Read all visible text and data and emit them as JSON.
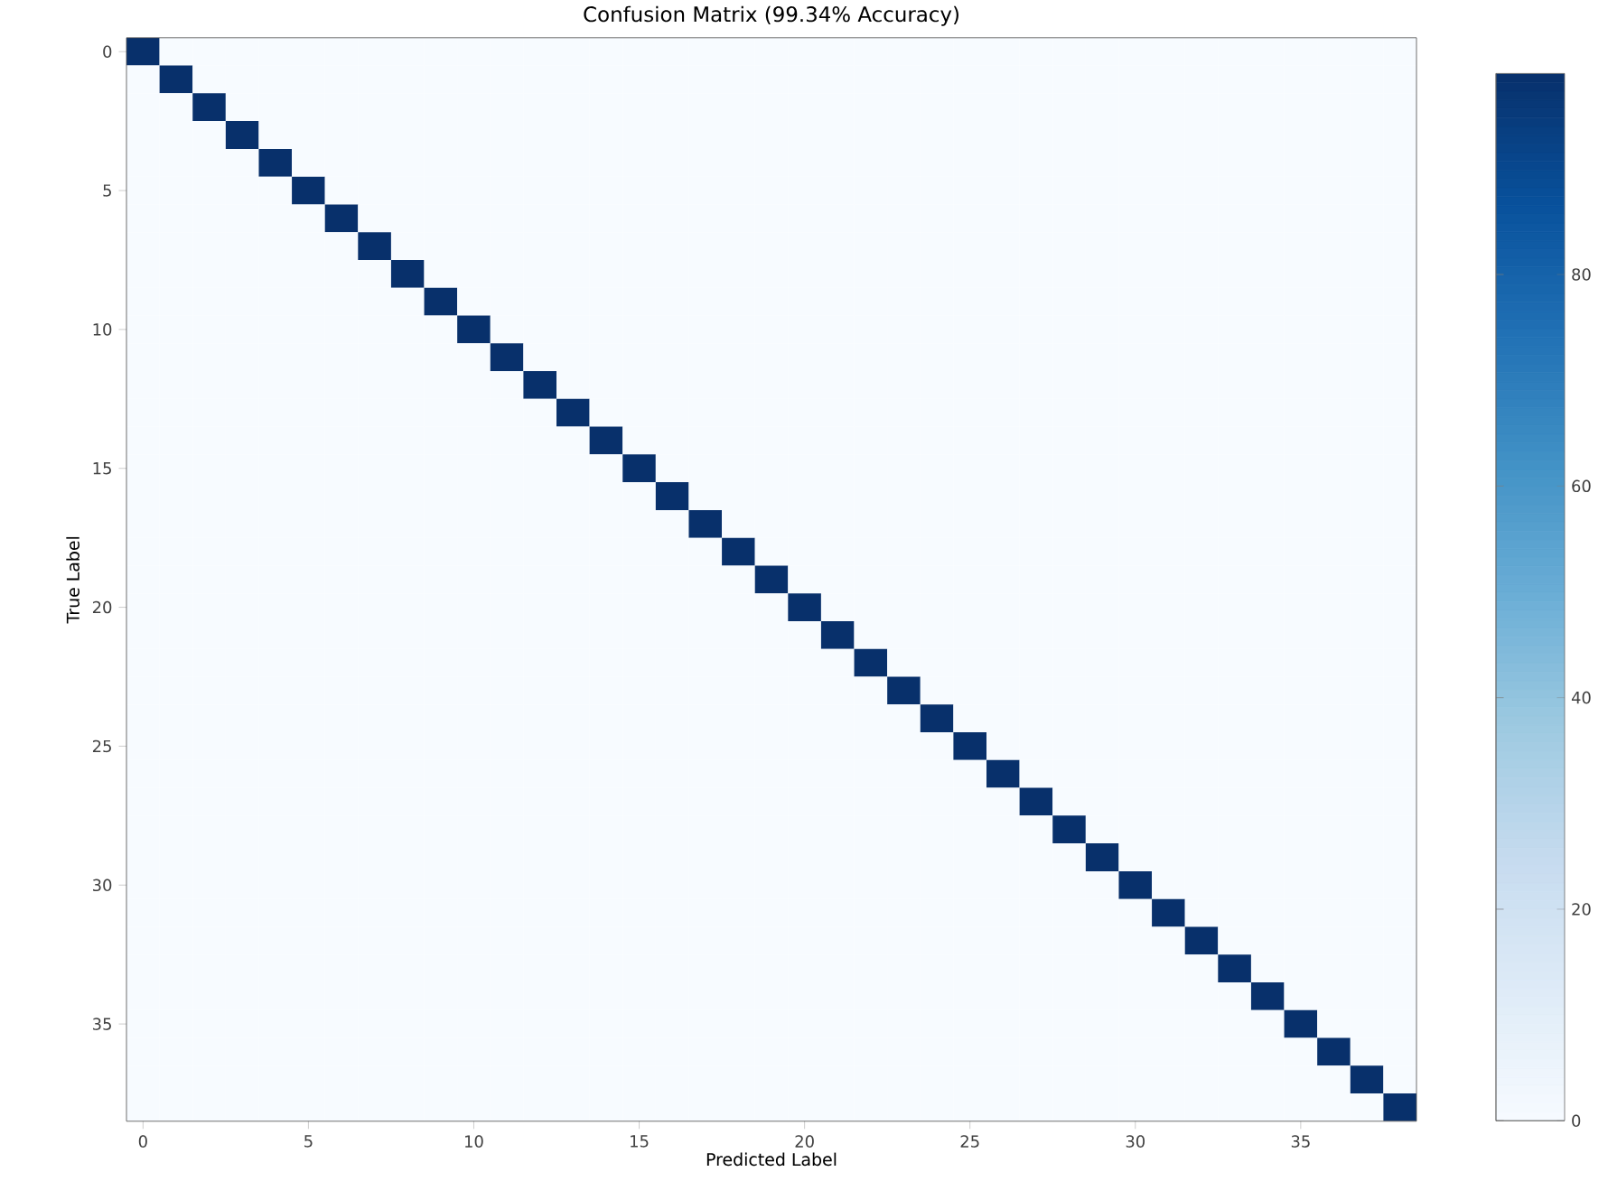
{
  "chart_data": {
    "type": "heatmap",
    "title": "Confusion Matrix (99.34% Accuracy)",
    "xlabel": "Predicted Label",
    "ylabel": "True Label",
    "categories": [
      "0",
      null,
      null,
      null,
      null,
      "5",
      null,
      null,
      null,
      null,
      "10",
      null,
      null,
      null,
      null,
      "15",
      null,
      null,
      null,
      null,
      "20",
      null,
      null,
      null,
      null,
      "25",
      null,
      null,
      null,
      null,
      "30",
      null,
      null,
      null,
      null,
      "35",
      null,
      null,
      null
    ],
    "y_categories": [
      "0",
      null,
      null,
      null,
      null,
      "5",
      null,
      null,
      null,
      null,
      "10",
      null,
      null,
      null,
      null,
      "15",
      null,
      null,
      null,
      null,
      "20",
      null,
      null,
      null,
      null,
      "25",
      null,
      null,
      null,
      null,
      "30",
      null,
      null,
      null,
      null,
      "35",
      null,
      null,
      null
    ],
    "clim": [
      0,
      99
    ],
    "cticks": [
      0,
      20,
      40,
      60,
      80
    ],
    "cells": [
      [
        99,
        0,
        0,
        0,
        0,
        0,
        0,
        0,
        0,
        0,
        0,
        0,
        0,
        0,
        0,
        0,
        0,
        0,
        0,
        0,
        0,
        0,
        0,
        0,
        0,
        0,
        0,
        0,
        0,
        0,
        0,
        0,
        0,
        0,
        0,
        0,
        0,
        0,
        0
      ],
      [
        0,
        99,
        0,
        0,
        0,
        0,
        0,
        0,
        0,
        0,
        0,
        0,
        0,
        0,
        0,
        0,
        0,
        0,
        0,
        0,
        0,
        0,
        0,
        0,
        0,
        0,
        0,
        0,
        0,
        0,
        0,
        0,
        0,
        0,
        0,
        0,
        0,
        0,
        0
      ],
      [
        0,
        0,
        99,
        0,
        0,
        0,
        0,
        0,
        0,
        0,
        0,
        0,
        0,
        0,
        0,
        0,
        0,
        0,
        0,
        0,
        0,
        0,
        0,
        0,
        0,
        0,
        0,
        0,
        0,
        0,
        0,
        0,
        0,
        0,
        0,
        0,
        0,
        0,
        0
      ],
      [
        0,
        0,
        0,
        99,
        0,
        0,
        0,
        0,
        0,
        0,
        0,
        0,
        0,
        0,
        0,
        0,
        0,
        0,
        0,
        0,
        0,
        0,
        0,
        0,
        0,
        0,
        0,
        0,
        0,
        0,
        0,
        0,
        0,
        0,
        0,
        0,
        0,
        0,
        0
      ],
      [
        0,
        0,
        0,
        0,
        99,
        0,
        0,
        0,
        0,
        0,
        0,
        0,
        0,
        0,
        0,
        0,
        0,
        0,
        0,
        0,
        0,
        0,
        0,
        0,
        0,
        0,
        0,
        0,
        0,
        0,
        0,
        0,
        0,
        0,
        0,
        0,
        0,
        0,
        0
      ],
      [
        0,
        0,
        0,
        0,
        0,
        99,
        0,
        0,
        0,
        0,
        0,
        0,
        0,
        0,
        0,
        0,
        0,
        0,
        0,
        0,
        0,
        0,
        0,
        0,
        0,
        0,
        0,
        0,
        0,
        0,
        0,
        0,
        0,
        0,
        0,
        0,
        0,
        0,
        0
      ],
      [
        0,
        0,
        0,
        0,
        0,
        0,
        99,
        0,
        0,
        0,
        0,
        0,
        0,
        0,
        0,
        0,
        0,
        0,
        0,
        0,
        0,
        0,
        0,
        0,
        0,
        0,
        0,
        0,
        0,
        0,
        0,
        0,
        0,
        0,
        0,
        0,
        0,
        0,
        0
      ],
      [
        0,
        0,
        0,
        0,
        0,
        0,
        0,
        99,
        0,
        0,
        0,
        0,
        0,
        0,
        0,
        0,
        0,
        0,
        0,
        0,
        0,
        0,
        0,
        0,
        0,
        0,
        0,
        0,
        0,
        0,
        0,
        0,
        0,
        0,
        0,
        0,
        0,
        0,
        0
      ],
      [
        0,
        0,
        0,
        0,
        0,
        0,
        0,
        0,
        99,
        0,
        0,
        0,
        0,
        0,
        0,
        0,
        0,
        0,
        0,
        0,
        0,
        0,
        0,
        0,
        0,
        0,
        0,
        0,
        0,
        0,
        0,
        0,
        0,
        0,
        0,
        0,
        0,
        0,
        0
      ],
      [
        0,
        0,
        0,
        0,
        0,
        0,
        0,
        0,
        0,
        99,
        0,
        0,
        0,
        0,
        0,
        0,
        0,
        0,
        0,
        0,
        0,
        0,
        0,
        0,
        0,
        0,
        0,
        0,
        0,
        0,
        0,
        0,
        0,
        0,
        0,
        0,
        0,
        0,
        0
      ],
      [
        0,
        0,
        0,
        0,
        0,
        0,
        0,
        0,
        0,
        0,
        99,
        0,
        0,
        0,
        0,
        0,
        0,
        0,
        0,
        0,
        0,
        0,
        0,
        0,
        0,
        0,
        0,
        0,
        0,
        0,
        0,
        0,
        0,
        0,
        0,
        0,
        0,
        0,
        0
      ],
      [
        0,
        0,
        0,
        0,
        0,
        0,
        0,
        0,
        0,
        0,
        0,
        99,
        0,
        0,
        0,
        0,
        0,
        0,
        0,
        0,
        0,
        0,
        0,
        0,
        0,
        0,
        0,
        0,
        0,
        0,
        0,
        0,
        0,
        0,
        0,
        0,
        0,
        0,
        0
      ],
      [
        0,
        0,
        0,
        0,
        0,
        0,
        0,
        0,
        0,
        0,
        0,
        0,
        99,
        0,
        0,
        0,
        0,
        0,
        0,
        0,
        0,
        0,
        0,
        0,
        0,
        0,
        0,
        0,
        0,
        0,
        0,
        0,
        0,
        0,
        0,
        0,
        0,
        0,
        0
      ],
      [
        0,
        0,
        0,
        0,
        0,
        0,
        0,
        0,
        0,
        0,
        0,
        0,
        0,
        99,
        0,
        0,
        0,
        0,
        0,
        0,
        0,
        0,
        0,
        0,
        0,
        0,
        0,
        0,
        0,
        0,
        0,
        0,
        0,
        0,
        0,
        0,
        0,
        0,
        0
      ],
      [
        0,
        0,
        0,
        0,
        0,
        0,
        0,
        0,
        0,
        0,
        0,
        0,
        0,
        0,
        99,
        0,
        0,
        0,
        0,
        0,
        0,
        0,
        0,
        0,
        0,
        0,
        0,
        0,
        0,
        0,
        0,
        0,
        0,
        0,
        0,
        0,
        0,
        0,
        0
      ],
      [
        0,
        0,
        0,
        0,
        0,
        0,
        0,
        0,
        0,
        0,
        0,
        0,
        0,
        0,
        0,
        99,
        0,
        0,
        0,
        0,
        0,
        0,
        0,
        0,
        0,
        0,
        0,
        0,
        0,
        0,
        0,
        0,
        0,
        0,
        0,
        0,
        0,
        0,
        0
      ],
      [
        0,
        0,
        0,
        0,
        0,
        0,
        0,
        0,
        0,
        0,
        0,
        0,
        0,
        0,
        0,
        0,
        99,
        0,
        0,
        0,
        0,
        0,
        0,
        0,
        0,
        0,
        0,
        0,
        0,
        0,
        0,
        0,
        0,
        0,
        0,
        0,
        0,
        0,
        0
      ],
      [
        0,
        0,
        0,
        0,
        0,
        0,
        0,
        0,
        0,
        0,
        0,
        0,
        0,
        0,
        0,
        0,
        0,
        99,
        0,
        0,
        0,
        0,
        0,
        0,
        0,
        0,
        0,
        0,
        0,
        0,
        0,
        0,
        0,
        0,
        0,
        0,
        0,
        0,
        0
      ],
      [
        0,
        0,
        0,
        0,
        0,
        0,
        0,
        0,
        0,
        0,
        0,
        0,
        0,
        0,
        0,
        0,
        0,
        0,
        99,
        0,
        0,
        0,
        0,
        0,
        0,
        0,
        0,
        0,
        0,
        0,
        0,
        0,
        0,
        0,
        0,
        0,
        0,
        0,
        0
      ],
      [
        0,
        0,
        0,
        0,
        0,
        0,
        0,
        0,
        0,
        0,
        0,
        0,
        0,
        0,
        0,
        0,
        0,
        0,
        0,
        99,
        0,
        0,
        0,
        0,
        0,
        0,
        0,
        0,
        0,
        0,
        0,
        0,
        0,
        0,
        0,
        0,
        0,
        0,
        0
      ],
      [
        0,
        0,
        0,
        0,
        0,
        0,
        0,
        0,
        0,
        0,
        0,
        0,
        0,
        0,
        0,
        0,
        0,
        0,
        0,
        0,
        99,
        0,
        0,
        0,
        0,
        0,
        0,
        0,
        0,
        0,
        0,
        0,
        0,
        0,
        0,
        0,
        0,
        0,
        0
      ],
      [
        0,
        0,
        0,
        0,
        0,
        0,
        0,
        0,
        0,
        0,
        0,
        0,
        0,
        0,
        0,
        0,
        0,
        0,
        0,
        0,
        0,
        99,
        0,
        0,
        0,
        0,
        0,
        0,
        0,
        0,
        0,
        0,
        0,
        0,
        0,
        0,
        0,
        0,
        0
      ],
      [
        0,
        0,
        0,
        0,
        0,
        0,
        0,
        0,
        0,
        0,
        0,
        0,
        0,
        0,
        0,
        0,
        0,
        0,
        0,
        0,
        0,
        0,
        99,
        0,
        0,
        0,
        0,
        0,
        0,
        0,
        0,
        0,
        0,
        0,
        0,
        0,
        0,
        0,
        0
      ],
      [
        0,
        0,
        0,
        0,
        0,
        0,
        0,
        0,
        0,
        0,
        0,
        0,
        0,
        0,
        0,
        0,
        0,
        0,
        0,
        0,
        0,
        0,
        0,
        99,
        0,
        0,
        0,
        0,
        0,
        0,
        0,
        0,
        0,
        0,
        0,
        0,
        0,
        0,
        0
      ],
      [
        0,
        0,
        0,
        0,
        0,
        0,
        0,
        0,
        0,
        0,
        0,
        0,
        0,
        0,
        0,
        0,
        0,
        0,
        0,
        0,
        0,
        0,
        0,
        0,
        99,
        0,
        0,
        0,
        0,
        0,
        0,
        0,
        0,
        0,
        0,
        0,
        0,
        0,
        0
      ],
      [
        0,
        0,
        0,
        0,
        0,
        0,
        0,
        0,
        0,
        0,
        0,
        0,
        0,
        0,
        0,
        0,
        0,
        0,
        0,
        0,
        0,
        0,
        0,
        0,
        0,
        99,
        0,
        0,
        0,
        0,
        0,
        0,
        0,
        0,
        0,
        0,
        0,
        0,
        0
      ],
      [
        0,
        0,
        0,
        0,
        0,
        0,
        0,
        0,
        0,
        0,
        0,
        0,
        0,
        0,
        0,
        0,
        0,
        0,
        0,
        0,
        0,
        0,
        0,
        0,
        0,
        0,
        99,
        0,
        0,
        0,
        0,
        0,
        0,
        0,
        0,
        0,
        0,
        0,
        0
      ],
      [
        0,
        0,
        0,
        0,
        0,
        0,
        0,
        0,
        0,
        0,
        0,
        0,
        0,
        0,
        0,
        0,
        0,
        0,
        0,
        0,
        0,
        0,
        0,
        0,
        0,
        0,
        0,
        99,
        0,
        0,
        0,
        0,
        0,
        0,
        0,
        0,
        0,
        0,
        0
      ],
      [
        0,
        0,
        0,
        0,
        0,
        0,
        0,
        0,
        0,
        0,
        0,
        0,
        0,
        0,
        0,
        0,
        0,
        0,
        0,
        0,
        0,
        0,
        0,
        0,
        0,
        0,
        0,
        0,
        99,
        0,
        0,
        0,
        0,
        0,
        0,
        0,
        0,
        0,
        0
      ],
      [
        0,
        0,
        0,
        0,
        0,
        0,
        0,
        0,
        0,
        0,
        0,
        0,
        0,
        0,
        0,
        0,
        0,
        0,
        0,
        0,
        0,
        0,
        0,
        0,
        0,
        0,
        0,
        0,
        0,
        99,
        0,
        0,
        0,
        0,
        0,
        0,
        0,
        0,
        0
      ],
      [
        0,
        0,
        0,
        0,
        0,
        0,
        0,
        0,
        0,
        0,
        0,
        0,
        0,
        0,
        0,
        0,
        0,
        0,
        0,
        0,
        0,
        0,
        0,
        0,
        0,
        0,
        0,
        0,
        0,
        0,
        99,
        0,
        0,
        0,
        0,
        0,
        0,
        0,
        0
      ],
      [
        0,
        0,
        0,
        0,
        0,
        0,
        0,
        0,
        0,
        0,
        0,
        0,
        0,
        0,
        0,
        0,
        0,
        0,
        0,
        0,
        0,
        0,
        0,
        0,
        0,
        0,
        0,
        0,
        0,
        0,
        0,
        99,
        0,
        0,
        0,
        0,
        0,
        0,
        0
      ],
      [
        0,
        0,
        0,
        0,
        0,
        0,
        0,
        0,
        0,
        0,
        0,
        0,
        0,
        0,
        0,
        0,
        0,
        0,
        0,
        0,
        0,
        0,
        0,
        0,
        0,
        0,
        0,
        0,
        0,
        0,
        0,
        0,
        99,
        0,
        0,
        0,
        0,
        0,
        0
      ],
      [
        0,
        0,
        0,
        0,
        0,
        0,
        0,
        0,
        0,
        0,
        0,
        0,
        0,
        0,
        0,
        0,
        0,
        0,
        0,
        0,
        0,
        0,
        0,
        0,
        0,
        0,
        0,
        0,
        0,
        0,
        0,
        0,
        0,
        99,
        0,
        0,
        0,
        0,
        0
      ],
      [
        0,
        0,
        0,
        0,
        0,
        0,
        0,
        0,
        0,
        0,
        0,
        0,
        0,
        0,
        0,
        0,
        0,
        0,
        0,
        0,
        0,
        0,
        0,
        0,
        0,
        0,
        0,
        0,
        0,
        0,
        0,
        0,
        0,
        0,
        99,
        0,
        0,
        0,
        0
      ],
      [
        0,
        0,
        0,
        0,
        0,
        0,
        0,
        0,
        0,
        0,
        0,
        0,
        0,
        0,
        0,
        0,
        0,
        0,
        0,
        0,
        0,
        0,
        0,
        0,
        0,
        0,
        0,
        0,
        0,
        0,
        0,
        0,
        0,
        0,
        0,
        99,
        0,
        0,
        0
      ],
      [
        0,
        0,
        0,
        0,
        0,
        0,
        0,
        0,
        0,
        0,
        0,
        0,
        0,
        0,
        0,
        0,
        0,
        0,
        0,
        0,
        0,
        0,
        0,
        0,
        0,
        0,
        0,
        0,
        0,
        0,
        0,
        0,
        0,
        0,
        0,
        0,
        99,
        0,
        0
      ],
      [
        0,
        0,
        0,
        0,
        0,
        0,
        0,
        0,
        0,
        0,
        0,
        0,
        0,
        0,
        0,
        0,
        0,
        0,
        0,
        0,
        0,
        0,
        0,
        0,
        0,
        0,
        0,
        0,
        0,
        0,
        0,
        0,
        0,
        0,
        0,
        0,
        0,
        99,
        0
      ],
      [
        0,
        0,
        0,
        0,
        0,
        0,
        0,
        0,
        0,
        0,
        0,
        0,
        0,
        0,
        0,
        0,
        0,
        0,
        0,
        0,
        0,
        0,
        0,
        0,
        0,
        0,
        0,
        0,
        0,
        0,
        0,
        0,
        0,
        0,
        0,
        0,
        0,
        0,
        99
      ]
    ]
  }
}
